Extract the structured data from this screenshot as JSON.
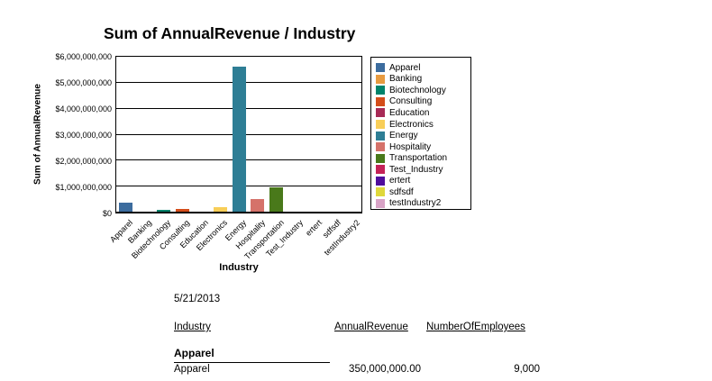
{
  "chart_data": {
    "type": "bar",
    "title": "Sum of AnnualRevenue / Industry",
    "xlabel": "Industry",
    "ylabel": "Sum of AnnualRevenue",
    "ylim": [
      0,
      6000000000
    ],
    "ytick_interval": 1000000000,
    "ytick_labels_top_to_bottom": [
      "$6,000,000,000",
      "$5,000,000,000",
      "$4,000,000,000",
      "$3,000,000,000",
      "$2,000,000,000",
      "$1,000,000,000",
      "$0"
    ],
    "grid": true,
    "legend_position": "right",
    "categories": [
      "Apparel",
      "Banking",
      "Biotechnology",
      "Consulting",
      "Education",
      "Electronics",
      "Energy",
      "Hospitality",
      "Transportation",
      "Test_Industry",
      "ertert",
      "sdfsdf",
      "testIndustry2"
    ],
    "values": [
      350000000,
      0,
      75000000,
      110000000,
      0,
      180000000,
      5600000000,
      500000000,
      950000000,
      0,
      0,
      0,
      0
    ],
    "colors": [
      "#3C6C9E",
      "#E89B40",
      "#00836B",
      "#D44D1A",
      "#A72A56",
      "#F8CE58",
      "#2E7E95",
      "#D5726A",
      "#49791A",
      "#C42258",
      "#4F0D9C",
      "#DFD83B",
      "#D8A3C6"
    ]
  },
  "report": {
    "date": "5/21/2013",
    "columns": [
      "Industry",
      "AnnualRevenue",
      "NumberOfEmployees"
    ],
    "group_header": "Apparel",
    "rows": [
      {
        "industry": "Apparel",
        "annual_revenue": "350,000,000.00",
        "employees": "9,000"
      }
    ]
  }
}
